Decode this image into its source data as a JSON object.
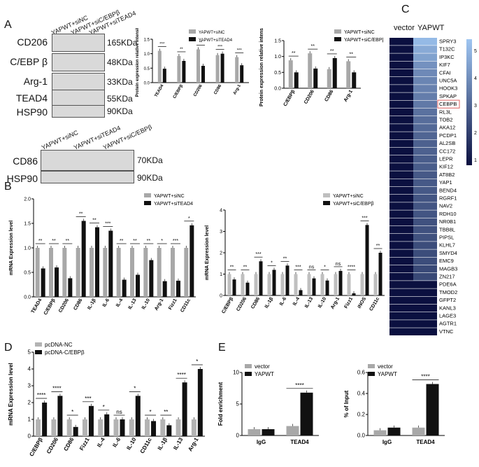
{
  "panel_letters": [
    "A",
    "B",
    "C",
    "D",
    "E"
  ],
  "blotA": {
    "lanes": [
      "YAPWT+siNC",
      "YAPWT+siC/EBPβ",
      "YAPWT+siTEAD4"
    ],
    "rows": [
      {
        "label": "CD206",
        "kda": "165KDa"
      },
      {
        "label": "C/EBP β",
        "kda": "48KDa"
      },
      {
        "label": "Arg-1",
        "kda": "33KDa"
      },
      {
        "label": "TEAD4",
        "kda": "55KDa"
      },
      {
        "label": "HSP90",
        "kda": "90KDa"
      }
    ]
  },
  "blotA2": {
    "lanes": [
      "YAPWT+siNC",
      "YAPWT+siTEAD4",
      "YAPWT+siC/EBPβ"
    ],
    "rows": [
      {
        "label": "CD86",
        "kda": "70KDa"
      },
      {
        "label": "HSP90",
        "kda": "90KDa"
      }
    ]
  },
  "heatmap": {
    "col_labels": [
      "vector",
      "YAPWT"
    ],
    "genes": [
      "SPRY3",
      "T132C",
      "IP3KC",
      "KIF7",
      "CFAI",
      "UNC5A",
      "HOOK3",
      "SPKAP",
      "CEBPB",
      "RL3L",
      "TOB2",
      "AKA12",
      "PCDP1",
      "AL2SB",
      "CC172",
      "LEPR",
      "KIF12",
      "AT8B2",
      "YAP1",
      "BEND4",
      "RGRF1",
      "NAV2",
      "RDH10",
      "NR0B1",
      "TBB8L",
      "PIPSL",
      "KLHL7",
      "SMYD4",
      "EMC9",
      "MAGB3",
      "ZN217",
      "PDE6A",
      "TMOD2",
      "GFPT2",
      "KANL3",
      "LAGE3",
      "AGTR1",
      "VTNC"
    ],
    "vector_values": [
      1,
      1,
      1,
      1,
      1,
      1,
      1,
      1,
      1,
      1,
      1,
      1,
      1,
      1,
      1,
      1,
      1,
      1,
      1,
      1,
      1,
      1,
      1,
      1,
      1,
      1,
      1,
      1,
      1,
      1,
      1,
      1,
      1,
      1,
      1,
      1,
      1,
      1
    ],
    "yap_values": [
      5.2,
      4.8,
      4.6,
      4.2,
      4.0,
      3.9,
      3.8,
      3.7,
      3.6,
      3.4,
      3.3,
      3.2,
      3.1,
      3.0,
      3.0,
      2.9,
      2.9,
      2.8,
      2.8,
      2.8,
      2.7,
      2.7,
      2.7,
      2.6,
      2.6,
      2.6,
      2.5,
      2.5,
      2.5,
      2.4,
      2.4,
      1.0,
      1.0,
      1.0,
      1.0,
      1.0,
      1.0,
      1.0
    ],
    "scale_ticks": [
      "5",
      "4",
      "3",
      "2",
      "1"
    ],
    "colors": {
      "low": "#0b1040",
      "high": "#9fc6f2",
      "box": "#e06060"
    }
  },
  "chart_data": [
    {
      "id": "A1",
      "type": "bar",
      "title": "",
      "ylabel": "Protein expression relative intensity",
      "ylim": [
        0,
        1.5
      ],
      "categories": [
        "TEAD4",
        "C/EBPβ",
        "CD206",
        "CD86",
        "Arg-1"
      ],
      "series": [
        {
          "name": "YAPWT+siNC",
          "values": [
            1.1,
            0.92,
            1.15,
            0.95,
            0.88
          ],
          "color": "#a8a8a8"
        },
        {
          "name": "YAPWT+siTEAD4",
          "values": [
            0.48,
            0.75,
            0.58,
            1.0,
            0.6
          ],
          "color": "#111111"
        }
      ],
      "significance": [
        "***",
        "**",
        "**",
        "***",
        "***"
      ],
      "yticks": [
        "0.0",
        "0.5",
        "1.0",
        "1.5"
      ]
    },
    {
      "id": "A2",
      "type": "bar",
      "title": "",
      "ylabel": "Protein expression relative intensity",
      "ylim": [
        0,
        1.5
      ],
      "categories": [
        "C/EBPβ",
        "CD206",
        "CD86",
        "Arg-1"
      ],
      "series": [
        {
          "name": "YAPWT+siNC",
          "values": [
            0.88,
            1.1,
            0.6,
            0.85
          ],
          "color": "#a8a8a8"
        },
        {
          "name": "YAPWT+siC/EBPβ",
          "values": [
            0.5,
            0.62,
            0.95,
            0.5
          ],
          "color": "#111111"
        }
      ],
      "significance": [
        "**",
        "**",
        "**",
        "**"
      ],
      "yticks": [
        "0.0",
        "0.5",
        "1.0",
        "1.5"
      ]
    },
    {
      "id": "B1",
      "type": "bar",
      "title": "",
      "ylabel": "mRNA Expression level",
      "ylim": [
        0,
        2.0
      ],
      "categories": [
        "TEAD4",
        "C/EBPβ",
        "CD206",
        "CD86",
        "IL-1β",
        "IL-6",
        "IL-4",
        "IL-13",
        "IL-10",
        "Arg-1",
        "Fizz1",
        "CD11c"
      ],
      "series": [
        {
          "name": "YAPWT+siNC",
          "values": [
            1,
            1,
            1,
            1,
            1,
            1,
            1,
            1,
            1,
            1,
            1,
            1
          ],
          "color": "#a8a8a8"
        },
        {
          "name": "YAPWT+siTEAD4",
          "values": [
            0.58,
            0.6,
            0.38,
            1.55,
            1.42,
            1.35,
            0.35,
            0.45,
            0.75,
            0.32,
            0.33,
            1.46
          ],
          "color": "#111111"
        }
      ],
      "significance": [
        "**",
        "**",
        "**",
        "**",
        "**",
        "***",
        "**",
        "**",
        "**",
        "*",
        "***",
        "*"
      ],
      "yticks": [
        "0.0",
        "0.5",
        "1.0",
        "1.5",
        "2.0"
      ]
    },
    {
      "id": "B2",
      "type": "bar",
      "title": "",
      "ylabel": "mRNA Expression level",
      "ylim": [
        0,
        4
      ],
      "categories": [
        "C/EBPβ",
        "CD206",
        "CD86",
        "IL-1β",
        "IL-6",
        "IL-4",
        "IL-13",
        "IL-10",
        "Arg-1",
        "Fizz1",
        "iNOS",
        "CD11c"
      ],
      "series": [
        {
          "name": "YAPWT+siNC",
          "values": [
            1,
            1,
            1,
            1,
            1,
            1,
            1,
            1,
            1,
            1,
            1,
            1
          ],
          "color": "#bfbfbf"
        },
        {
          "name": "YAPWT+siC/EBPβ",
          "values": [
            0.75,
            0.6,
            1.6,
            1.2,
            1.4,
            0.25,
            0.8,
            0.7,
            1.15,
            0.1,
            3.3,
            2.0
          ],
          "color": "#111111"
        }
      ],
      "significance": [
        "**",
        "**",
        "***",
        "*",
        "**",
        "***",
        "ns",
        "*",
        "ns",
        "****",
        "***",
        "**"
      ],
      "yticks": [
        "0",
        "1",
        "2",
        "3",
        "4"
      ]
    },
    {
      "id": "D",
      "type": "bar",
      "title": "",
      "ylabel": "mRNA Expression level",
      "ylim": [
        0,
        5
      ],
      "categories": [
        "C/EBPβ",
        "CD206",
        "CD86",
        "Fizz1",
        "IL-4",
        "IL-6",
        "IL-10",
        "CD11c",
        "IL-1β",
        "IL-13",
        "Arg-1"
      ],
      "series": [
        {
          "name": "pcDNA-NC",
          "values": [
            1,
            1,
            1,
            1,
            1,
            1,
            1,
            1,
            1,
            1,
            1
          ],
          "color": "#b3b3b3"
        },
        {
          "name": "pcDNA-C/EBPβ",
          "values": [
            2.0,
            2.4,
            0.55,
            1.8,
            1.3,
            1.0,
            2.4,
            0.9,
            0.65,
            3.2,
            4.0
          ],
          "color": "#111111"
        }
      ],
      "significance": [
        "****",
        "****",
        "*",
        "***",
        "*",
        "ns",
        "*",
        "*",
        "**",
        "****",
        "*"
      ],
      "yticks": [
        "0",
        "1",
        "2",
        "3",
        "4",
        "5"
      ]
    },
    {
      "id": "E1",
      "type": "bar",
      "title": "",
      "ylabel": "Fold enrichment",
      "ylim": [
        0,
        10
      ],
      "categories": [
        "IgG",
        "TEAD4"
      ],
      "series": [
        {
          "name": "vector",
          "values": [
            1.0,
            1.5
          ],
          "color": "#a8a8a8"
        },
        {
          "name": "YAPWT",
          "values": [
            1.0,
            6.8
          ],
          "color": "#111111"
        }
      ],
      "significance": [
        "",
        "****"
      ],
      "yticks": [
        "0",
        "5",
        "10"
      ]
    },
    {
      "id": "E2",
      "type": "bar",
      "title": "",
      "ylabel": "% of Input",
      "ylim": [
        0,
        0.6
      ],
      "categories": [
        "IgG",
        "TEAD4"
      ],
      "series": [
        {
          "name": "vector",
          "values": [
            0.05,
            0.075
          ],
          "color": "#a8a8a8"
        },
        {
          "name": "YAPWT",
          "values": [
            0.075,
            0.49
          ],
          "color": "#111111"
        }
      ],
      "significance": [
        "",
        "****"
      ],
      "yticks": [
        "0.0",
        "0.2",
        "0.4",
        "0.6"
      ]
    }
  ]
}
